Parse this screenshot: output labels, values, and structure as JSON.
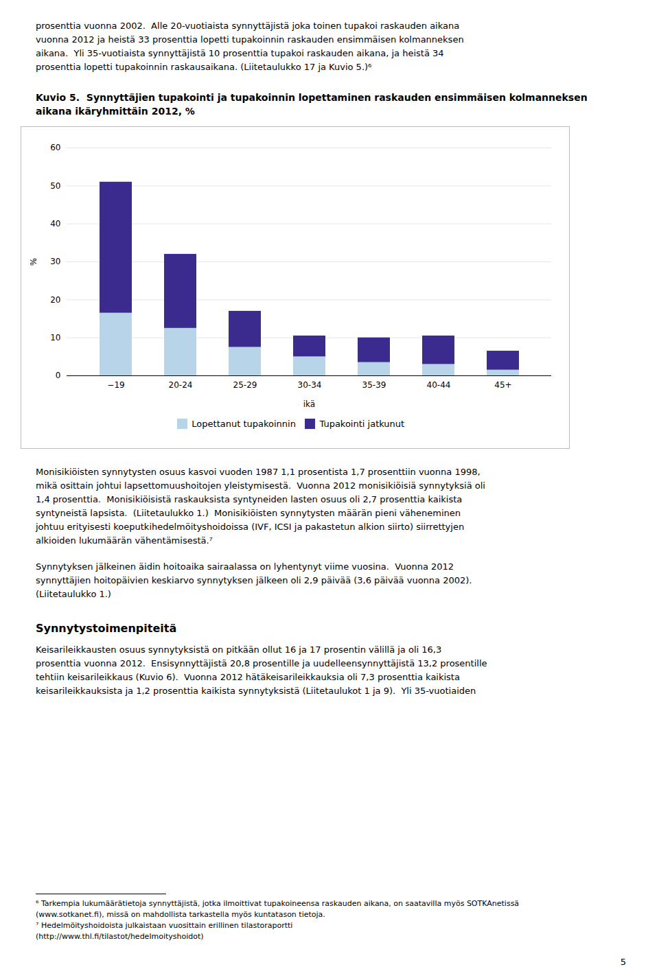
{
  "paragraphs_above": [
    [
      "prosenttia vuonna 2002.  Alle 20-vuotiaista synnyttäjistä joka toinen tupakoi raskauden aikana",
      "vuonna 2012 ja heistä 33 prosenttia lopetti tupakoinnin raskauden ensimmäisen kolmanneksen",
      "aikana.  Yli 35-vuotiaista synnyttäjistä 10 prosenttia tupakoi raskauden aikana, ja heistä 34",
      "prosenttia lopetti tupakoinnin raskausaikana. (Liitetaulukko 17 ja Kuvio 5.)⁶"
    ]
  ],
  "chart_data": {
    "type": "bar",
    "stacked": true,
    "title": "Kuvio 5.  Synnyttäjien tupakointi ja tupakoinnin lopettaminen raskauden ensimmäisen kolmanneksen aikana ikäryhmittäin 2012, %",
    "xlabel": "ikä",
    "ylabel": "%",
    "categories": [
      "−19",
      "20-24",
      "25-29",
      "30-34",
      "35-39",
      "40-44",
      "45+"
    ],
    "series": [
      {
        "name": "Lopettanut tupakoinnin",
        "color": "#b8d4e8",
        "values": [
          16.5,
          12.5,
          7.5,
          5.0,
          3.5,
          3.0,
          1.5
        ]
      },
      {
        "name": "Tupakointi jatkunut",
        "color": "#3c2b8f",
        "values": [
          34.5,
          19.5,
          9.5,
          5.5,
          6.5,
          7.5,
          5.0
        ]
      }
    ],
    "ylim": [
      0,
      60
    ],
    "yticks": [
      0,
      10,
      20,
      30,
      40,
      50,
      60
    ],
    "grid": true,
    "legend": "bottom"
  },
  "paragraphs_below": [
    [
      "Monisikiöisten synnytysten osuus kasvoi vuoden 1987 1,1 prosentista 1,7 prosenttiin vuonna 1998,",
      "mikä osittain johtui lapsettomuushoitojen yleistymisestä.  Vuonna 2012 monisikiöisiä synnytyksiä oli",
      "1,4 prosenttia.  Monisikiöisistä raskauksista syntyneiden lasten osuus oli 2,7 prosenttia kaikista",
      "syntyneistä lapsista.  (Liitetaulukko 1.)  Monisikiöisten synnytysten määrän pieni väheneminen",
      "johtuu erityisesti koeputkihedelmöityshoidoissa (IVF, ICSI ja pakastetun alkion siirto) siirrettyjen",
      "alkioiden lukumäärän vähentämisestä.⁷"
    ],
    [
      "Synnytyksen jälkeinen äidin hoitoaika sairaalassa on lyhentynyt viime vuosina.  Vuonna 2012",
      "synnyttäjien hoitopäivien keskiarvo synnytyksen jälkeen oli 2,9 päivää (3,6 päivää vuonna 2002).",
      "(Liitetaulukko 1.)"
    ]
  ],
  "heading": "Synnytystoimenpiteitä",
  "paragraphs_after_heading": [
    [
      "Keisarileikkausten osuus synnytyksistä on pitkään ollut 16 ja 17 prosentin välillä ja oli 16,3",
      "prosenttia vuonna 2012.  Ensisynnyttäjistä 20,8 prosentille ja uudelleensynnyttäjistä 13,2 prosentille",
      "tehtiin keisarileikkaus (Kuvio 6).  Vuonna 2012 hätäkeisarileikkauksia oli 7,3 prosenttia kaikista",
      "keisarileikkauksista ja 1,2 prosenttia kaikista synnytyksistä (Liitetaulukot 1 ja 9).  Yli 35-vuotiaiden"
    ]
  ],
  "footnotes": [
    "⁶ Tarkempia lukumäärätietoja synnyttäjistä, jotka ilmoittivat tupakoineensa raskauden aikana, on saatavilla myös SOTKAnetissä",
    "(www.sotkanet.fi), missä on mahdollista tarkastella myös kuntatason tietoja.",
    "⁷ Hedelmöityshoidoista julkaistaan vuosittain erillinen tilastoraportti",
    "(http://www.thl.fi/tilastot/hedelmoityshoidot)"
  ],
  "page_number": "5"
}
